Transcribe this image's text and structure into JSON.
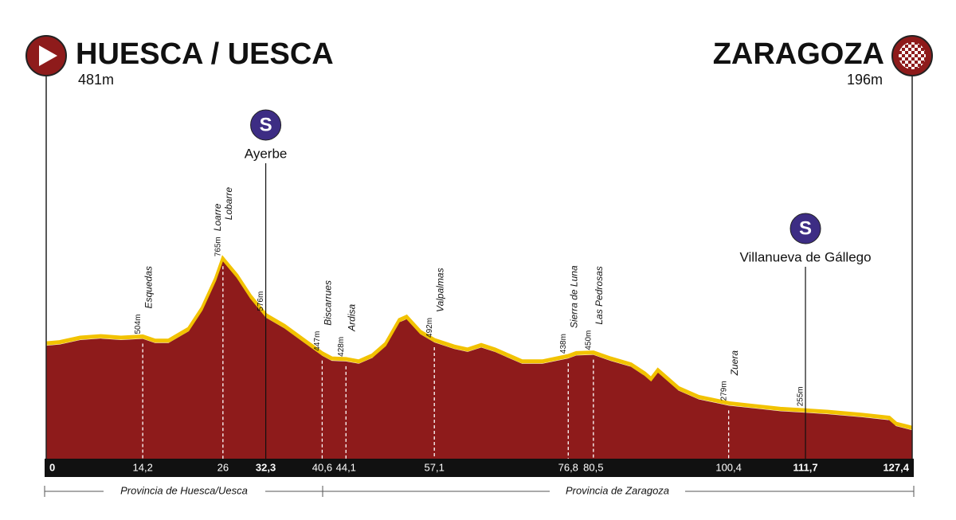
{
  "start": {
    "name": "HUESCA / UESCA",
    "elevation": {
      "value": 481,
      "label": "481m"
    }
  },
  "finish": {
    "name": "ZARAGOZA",
    "elevation": {
      "value": 196,
      "label": "196m"
    }
  },
  "sprint_icon": "S",
  "provinces": [
    "Provincia de Huesca/Uesca",
    "Provincia de Zaragoza"
  ],
  "chart_data": {
    "type": "area",
    "color": "#8e1b1b",
    "edge_color": "#f2c200",
    "x": [
      0,
      2,
      5,
      8,
      11,
      14.2,
      16,
      18,
      21,
      23,
      25,
      26,
      28,
      30,
      32.3,
      35,
      38,
      40.6,
      42,
      44.1,
      46,
      48,
      50,
      52,
      53,
      55,
      57.1,
      60,
      62,
      64,
      66,
      68,
      70,
      73,
      76.8,
      78,
      80.5,
      83,
      86,
      88,
      89,
      90,
      93,
      96,
      100.4,
      104,
      108,
      111.7,
      115,
      120,
      124,
      125,
      127.4
    ],
    "values": [
      481,
      485,
      500,
      505,
      500,
      504,
      490,
      490,
      530,
      600,
      700,
      765,
      710,
      640,
      576,
      540,
      490,
      447,
      430,
      428,
      420,
      440,
      480,
      560,
      570,
      520,
      492,
      470,
      460,
      475,
      460,
      440,
      420,
      420,
      438,
      448,
      450,
      430,
      410,
      380,
      360,
      390,
      330,
      300,
      279,
      270,
      260,
      255,
      250,
      240,
      230,
      210,
      196
    ],
    "xlim": [
      0,
      127.4
    ],
    "ylim": [
      100,
      900
    ],
    "xticks": [
      0,
      {
        "value": 127.4,
        "label": "127,4"
      }
    ],
    "waypoints": [
      {
        "names": [
          "Esquedas"
        ],
        "km": {
          "value": 14.2,
          "label": "14,2"
        },
        "elevation": {
          "value": 504,
          "label": "504m"
        },
        "sprint": false
      },
      {
        "names": [
          "Loarre",
          "Lobarre"
        ],
        "km": 26,
        "elevation": {
          "value": 765,
          "label": "765m"
        },
        "sprint": false
      },
      {
        "names": [
          "Ayerbe"
        ],
        "km": {
          "value": 32.3,
          "label": "32,3"
        },
        "elevation": {
          "value": 576,
          "label": "576m"
        },
        "sprint": true
      },
      {
        "names": [
          "Biscarrues"
        ],
        "km": {
          "value": 40.6,
          "label": "40,6"
        },
        "elevation": {
          "value": 447,
          "label": "447m"
        },
        "sprint": false
      },
      {
        "names": [
          "Ardisa"
        ],
        "km": {
          "value": 44.1,
          "label": "44,1"
        },
        "elevation": {
          "value": 428,
          "label": "428m"
        },
        "sprint": false
      },
      {
        "names": [
          "Valpalmas"
        ],
        "km": {
          "value": 57.1,
          "label": "57,1"
        },
        "elevation": {
          "value": 492,
          "label": "492m"
        },
        "sprint": false
      },
      {
        "names": [
          "Sierra de Luna"
        ],
        "km": {
          "value": 76.8,
          "label": "76,8"
        },
        "elevation": {
          "value": 438,
          "label": "438m"
        },
        "sprint": false
      },
      {
        "names": [
          "Las Pedrosas"
        ],
        "km": {
          "value": 80.5,
          "label": "80,5"
        },
        "elevation": {
          "value": 450,
          "label": "450m"
        },
        "sprint": false
      },
      {
        "names": [
          "Zuera"
        ],
        "km": {
          "value": 100.4,
          "label": "100,4"
        },
        "elevation": {
          "value": 279,
          "label": "279m"
        },
        "sprint": false
      },
      {
        "names": [
          "Villanueva de Gállego"
        ],
        "km": {
          "value": 111.7,
          "label": "111,7"
        },
        "elevation": {
          "value": 255,
          "label": "255m"
        },
        "sprint": true
      }
    ]
  }
}
